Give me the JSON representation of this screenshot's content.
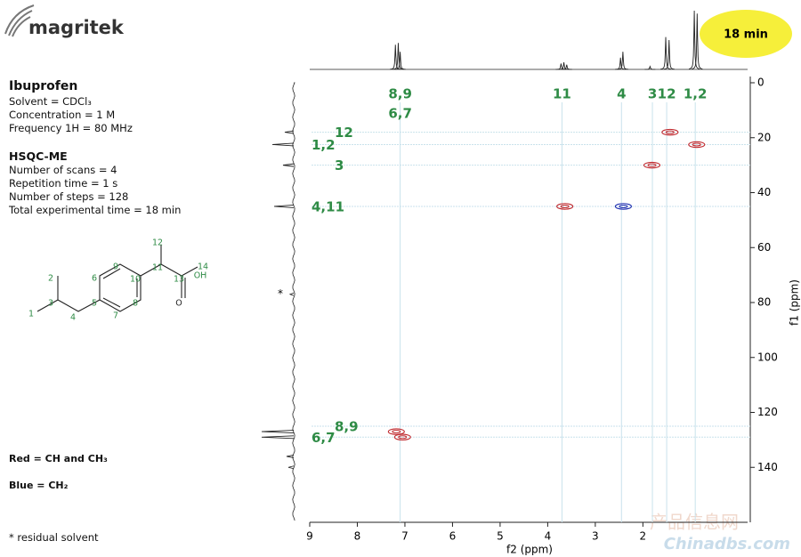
{
  "logo": "magritek",
  "badge": "18 min",
  "sample": {
    "title": "Ibuprofen",
    "lines": [
      "Solvent = CDCl₃",
      "Concentration = 1 M",
      "Frequency 1H = 80 MHz"
    ]
  },
  "experiment": {
    "title": "HSQC-ME",
    "lines": [
      "Number of scans = 4",
      "Repetition time = 1 s",
      "Number of steps = 128",
      "Total experimental time = 18 min"
    ]
  },
  "molecule": {
    "atoms": [
      "1",
      "2",
      "3",
      "4",
      "5",
      "6",
      "7",
      "8",
      "9",
      "10",
      "11",
      "12",
      "13",
      "14",
      "OH",
      "O"
    ]
  },
  "footnote": "* residual solvent",
  "watermark": [
    "产品信息网",
    "Chinadbs.com"
  ],
  "chart_data": {
    "type": "hsqc",
    "xlabel": "f2 (ppm)",
    "ylabel": "f1 (ppm)",
    "xlim": [
      9,
      -0.2
    ],
    "ylim": [
      0,
      160
    ],
    "xticks": [
      9,
      8,
      7,
      6,
      5,
      4,
      3,
      2
    ],
    "yticks": [
      0,
      20,
      40,
      60,
      80,
      100,
      120,
      140
    ],
    "series": [
      {
        "name": "Red = CH and CH₃",
        "color": "#c0282d",
        "x": [
          1.43,
          0.87,
          1.81,
          3.64,
          7.18,
          7.05
        ],
        "values": [
          18,
          22.5,
          30,
          45,
          127,
          129
        ]
      },
      {
        "name": "Blue = CH₂",
        "color": "#1f2fb0",
        "x": [
          2.41
        ],
        "values": [
          45
        ]
      }
    ],
    "f2_projection": {
      "x": [
        7.2,
        7.14,
        7.1,
        3.72,
        3.66,
        3.6,
        2.47,
        2.42,
        1.85,
        1.52,
        1.45,
        0.92,
        0.86
      ],
      "values": [
        42,
        45,
        30,
        10,
        12,
        8,
        20,
        30,
        5,
        55,
        50,
        100,
        95
      ]
    },
    "f1_projection": {
      "x": [
        18,
        22.5,
        30,
        45,
        77,
        127,
        129,
        136,
        140
      ],
      "values": [
        25,
        60,
        30,
        55,
        10,
        90,
        90,
        20,
        15
      ]
    },
    "f2_labels": [
      {
        "text": "8,9",
        "x": 7.1
      },
      {
        "text": "6,7",
        "x": 7.1
      },
      {
        "text": "11",
        "x": 3.7
      },
      {
        "text": "4",
        "x": 2.45
      },
      {
        "text": "3",
        "x": 1.8
      },
      {
        "text": "12",
        "x": 1.5
      },
      {
        "text": "1,2",
        "x": 0.9
      }
    ],
    "f1_labels": [
      {
        "text": "12",
        "y": 18
      },
      {
        "text": "1,2",
        "y": 22.5
      },
      {
        "text": "3",
        "y": 30
      },
      {
        "text": "4,11",
        "y": 45
      },
      {
        "text": "8,9",
        "y": 125
      },
      {
        "text": "6,7",
        "y": 129
      }
    ],
    "solvent_mark": {
      "text": "*",
      "y": 77
    }
  }
}
